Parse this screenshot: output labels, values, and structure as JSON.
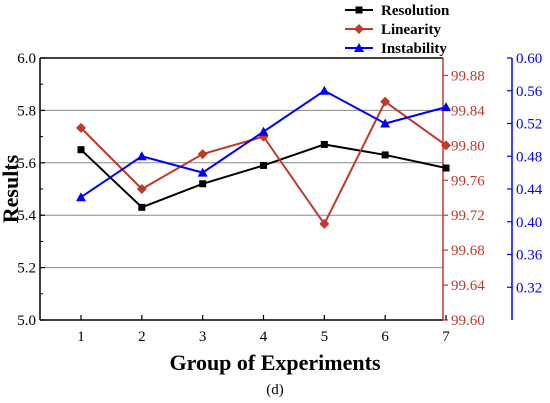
{
  "chart_data": {
    "type": "line",
    "caption": "(d)",
    "xlabel": "Group of Experiments",
    "ylabel": "Results",
    "categories": [
      "1",
      "2",
      "3",
      "4",
      "5",
      "6",
      "7"
    ],
    "axes": {
      "left": {
        "min": 5.0,
        "max": 6.0,
        "ticks": [
          "5.0",
          "5.2",
          "5.4",
          "5.6",
          "5.8",
          "6.0"
        ],
        "color": "#000000"
      },
      "right1": {
        "min": 99.6,
        "max": 99.9,
        "ticks": [
          "99.60",
          "99.64",
          "99.68",
          "99.72",
          "99.76",
          "99.80",
          "99.84",
          "99.88"
        ],
        "color": "#c0392b"
      },
      "right2": {
        "min": 0.28,
        "max": 0.6,
        "ticks": [
          "0.32",
          "0.36",
          "0.40",
          "0.44",
          "0.48",
          "0.52",
          "0.56",
          "0.60"
        ],
        "color": "#0000ff"
      }
    },
    "grid": true,
    "legend_position": "top-right",
    "series": [
      {
        "name": "Resolution",
        "axis": "left",
        "color": "#000000",
        "marker": "square",
        "values": [
          5.65,
          5.43,
          5.52,
          5.59,
          5.67,
          5.63,
          5.58
        ]
      },
      {
        "name": "Linearity",
        "axis": "right1",
        "color": "#c0392b",
        "marker": "diamond",
        "values": [
          99.82,
          99.75,
          99.79,
          99.81,
          99.71,
          99.85,
          99.8
        ]
      },
      {
        "name": "Instability",
        "axis": "right2",
        "color": "#0000ff",
        "marker": "triangle",
        "values": [
          0.43,
          0.48,
          0.46,
          0.51,
          0.56,
          0.52,
          0.54
        ]
      }
    ]
  }
}
